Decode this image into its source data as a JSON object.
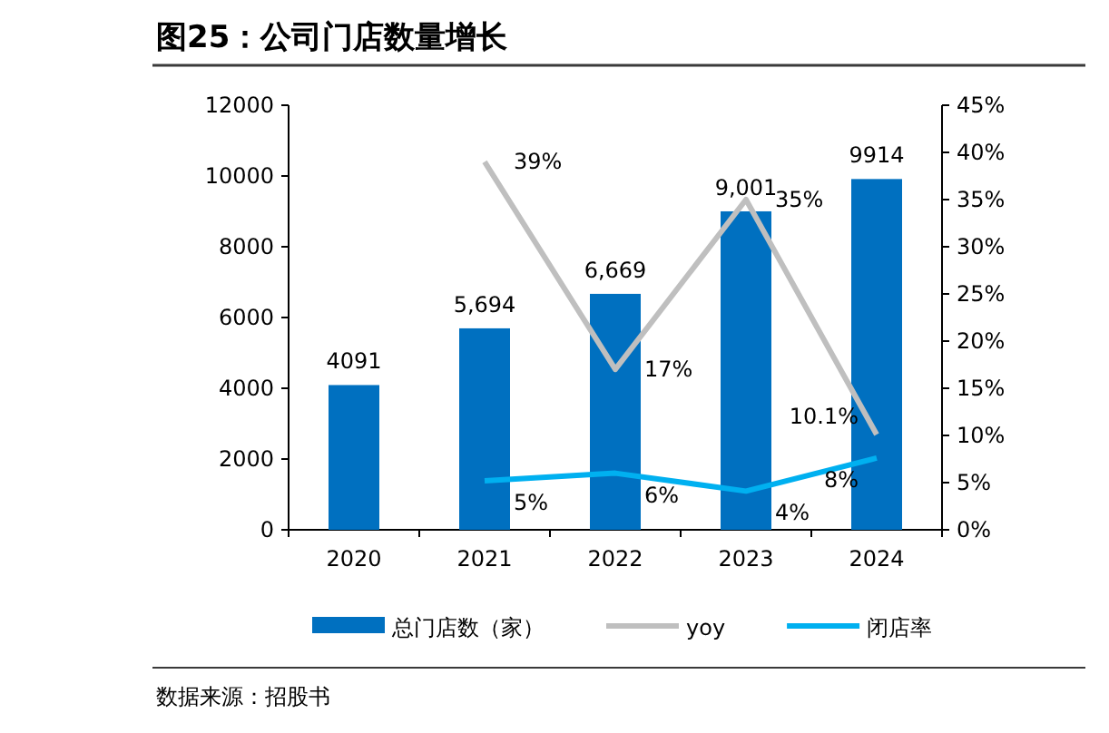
{
  "chart_data": {
    "type": "bar",
    "title": "图25：公司门店数量增长",
    "categories": [
      "2020",
      "2021",
      "2022",
      "2023",
      "2024"
    ],
    "series": [
      {
        "name": "总门店数（家）",
        "color": "#0070c0",
        "values": [
          4091,
          5694,
          6669,
          9001,
          9914
        ],
        "value_labels": [
          "4091",
          "5,694",
          "6,669",
          "9,001",
          "9914"
        ]
      },
      {
        "name": "yoy",
        "type": "line",
        "axis": "y2",
        "color": "#bfbfbf",
        "values": [
          null,
          39,
          17,
          35,
          10.1
        ],
        "value_labels": [
          null,
          "39%",
          "17%",
          "35%",
          "10.1%"
        ]
      },
      {
        "name": "闭店率",
        "type": "line",
        "axis": "y2",
        "color": "#00b0f0",
        "values": [
          null,
          5.2,
          6,
          4.1,
          7.6
        ],
        "value_labels": [
          null,
          "5%",
          "6%",
          "4%",
          "8%"
        ]
      }
    ],
    "ylim": [
      0,
      12000
    ],
    "yticks": [
      0,
      2000,
      4000,
      6000,
      8000,
      10000,
      12000
    ],
    "y2lim": [
      0,
      45
    ],
    "y2ticks": [
      {
        "value": 0,
        "label": "0%"
      },
      {
        "value": 5,
        "label": "5%"
      },
      {
        "value": 10,
        "label": "10%"
      },
      {
        "value": 15,
        "label": "15%"
      },
      {
        "value": 20,
        "label": "20%"
      },
      {
        "value": 25,
        "label": "25%"
      },
      {
        "value": 30,
        "label": "30%"
      },
      {
        "value": 35,
        "label": "35%"
      },
      {
        "value": 40,
        "label": "40%"
      },
      {
        "value": 45,
        "label": "45%"
      }
    ],
    "grid": false,
    "legend": "bottom",
    "marker": "none",
    "annotations": [
      "数据来源：招股书"
    ]
  }
}
